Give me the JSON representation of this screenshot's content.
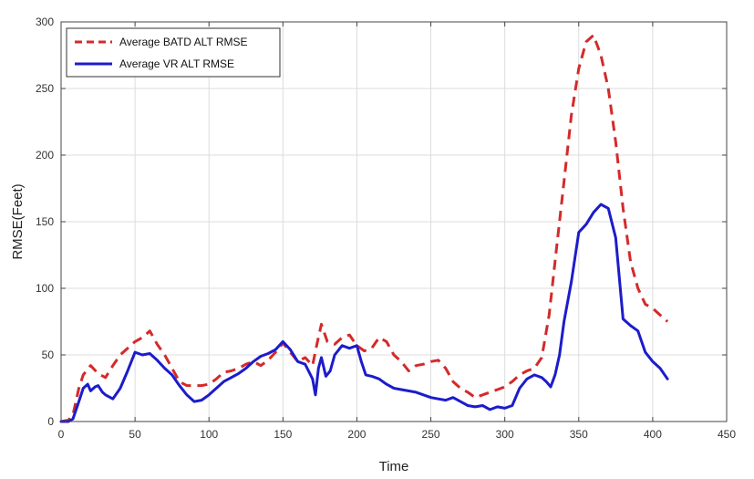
{
  "chart_data": {
    "type": "line",
    "title": "",
    "xlabel": "Time",
    "ylabel": "RMSE(Feet)",
    "xlim": [
      0,
      450
    ],
    "ylim": [
      0,
      300
    ],
    "xticks": [
      0,
      50,
      100,
      150,
      200,
      250,
      300,
      350,
      400,
      450
    ],
    "yticks": [
      0,
      50,
      100,
      150,
      200,
      250,
      300
    ],
    "grid": true,
    "legend_position": "top-left",
    "series": [
      {
        "name": "Average BATD ALT RMSE",
        "color": "#d42a2a",
        "style": "dashed",
        "x": [
          0,
          5,
          8,
          12,
          15,
          20,
          25,
          30,
          35,
          40,
          45,
          50,
          55,
          60,
          65,
          70,
          75,
          80,
          85,
          90,
          95,
          100,
          105,
          110,
          115,
          120,
          125,
          130,
          135,
          140,
          145,
          150,
          155,
          160,
          165,
          170,
          173,
          176,
          180,
          185,
          190,
          195,
          200,
          205,
          210,
          215,
          220,
          225,
          230,
          235,
          240,
          245,
          250,
          255,
          260,
          265,
          270,
          275,
          280,
          285,
          290,
          295,
          300,
          305,
          310,
          315,
          320,
          325,
          330,
          335,
          340,
          345,
          350,
          355,
          360,
          365,
          370,
          375,
          380,
          385,
          390,
          395,
          400,
          405,
          410
        ],
        "y": [
          0,
          1,
          5,
          25,
          35,
          42,
          36,
          33,
          42,
          50,
          55,
          60,
          63,
          68,
          58,
          50,
          40,
          30,
          27,
          27,
          27,
          28,
          32,
          37,
          38,
          40,
          43,
          45,
          42,
          46,
          52,
          59,
          52,
          45,
          48,
          42,
          58,
          73,
          60,
          58,
          63,
          65,
          57,
          53,
          55,
          63,
          60,
          50,
          45,
          38,
          42,
          43,
          45,
          46,
          40,
          30,
          25,
          22,
          18,
          20,
          22,
          24,
          26,
          30,
          35,
          38,
          40,
          48,
          80,
          130,
          180,
          230,
          265,
          285,
          290,
          275,
          250,
          210,
          160,
          120,
          100,
          88,
          85,
          80,
          75
        ]
      },
      {
        "name": "Average VR ALT RMSE",
        "color": "#1c1ccc",
        "style": "solid",
        "x": [
          0,
          5,
          8,
          12,
          15,
          18,
          20,
          23,
          25,
          28,
          30,
          35,
          40,
          45,
          50,
          55,
          60,
          65,
          70,
          75,
          80,
          85,
          90,
          95,
          100,
          105,
          110,
          115,
          120,
          125,
          130,
          135,
          140,
          145,
          150,
          155,
          160,
          165,
          170,
          172,
          174,
          176,
          179,
          182,
          185,
          190,
          195,
          200,
          203,
          206,
          210,
          215,
          220,
          225,
          230,
          240,
          250,
          255,
          260,
          265,
          270,
          275,
          280,
          285,
          290,
          295,
          300,
          305,
          310,
          315,
          320,
          325,
          328,
          331,
          334,
          337,
          340,
          345,
          350,
          355,
          360,
          365,
          370,
          375,
          380,
          385,
          390,
          395,
          400,
          405,
          410
        ],
        "y": [
          0,
          0,
          2,
          15,
          25,
          28,
          23,
          26,
          27,
          22,
          20,
          17,
          25,
          38,
          52,
          50,
          51,
          46,
          40,
          35,
          27,
          20,
          15,
          16,
          20,
          25,
          30,
          33,
          36,
          40,
          45,
          49,
          51,
          54,
          60,
          54,
          45,
          43,
          32,
          20,
          40,
          48,
          34,
          38,
          50,
          57,
          55,
          57,
          45,
          35,
          34,
          32,
          28,
          25,
          24,
          22,
          18,
          17,
          16,
          18,
          15,
          12,
          11,
          12,
          9,
          11,
          10,
          12,
          25,
          32,
          35,
          33,
          30,
          26,
          35,
          50,
          75,
          105,
          142,
          148,
          157,
          163,
          160,
          138,
          77,
          72,
          68,
          52,
          45,
          40,
          32
        ]
      }
    ]
  }
}
